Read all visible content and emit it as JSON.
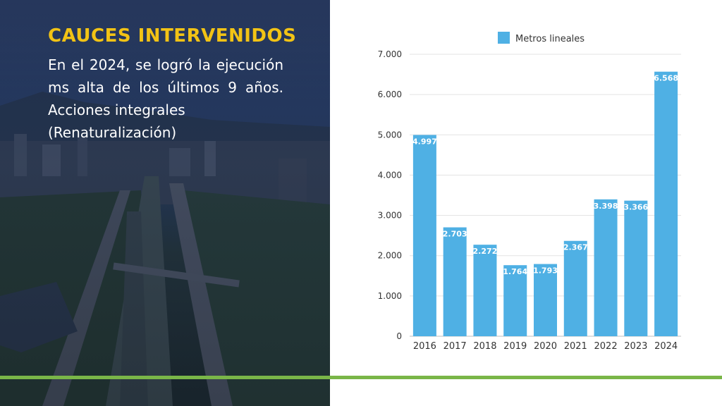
{
  "panel": {
    "headline": "CAUCES INTERVENIDOS",
    "body_lines": [
      "En el 2024, se logró la ejecución",
      "ms alta de los últimos 9 años.",
      "Acciones integrales",
      "(Renaturalización)"
    ]
  },
  "colors": {
    "headline": "#f2c315",
    "bar": "#4fb0e4",
    "stripe": "#7ab648"
  },
  "chart_data": {
    "type": "bar",
    "categories": [
      "2016",
      "2017",
      "2018",
      "2019",
      "2020",
      "2021",
      "2022",
      "2023",
      "2024"
    ],
    "series": [
      {
        "name": "Metros lineales",
        "values": [
          4997,
          2703,
          2272,
          1764,
          1793,
          2367,
          3398,
          3366,
          6568
        ],
        "labels": [
          "4.997",
          "2.703",
          "2.272",
          "1.764",
          "1.793",
          "2.367",
          "3.398",
          "3.366",
          "6.568"
        ]
      }
    ],
    "ylim": [
      0,
      7000
    ],
    "yticks": [
      0,
      1000,
      2000,
      3000,
      4000,
      5000,
      6000,
      7000
    ],
    "ytick_labels": [
      "0",
      "1.000",
      "2.000",
      "3.000",
      "4.000",
      "5.000",
      "6.000",
      "7.000"
    ],
    "grid": true,
    "legend_position": "top-center"
  }
}
